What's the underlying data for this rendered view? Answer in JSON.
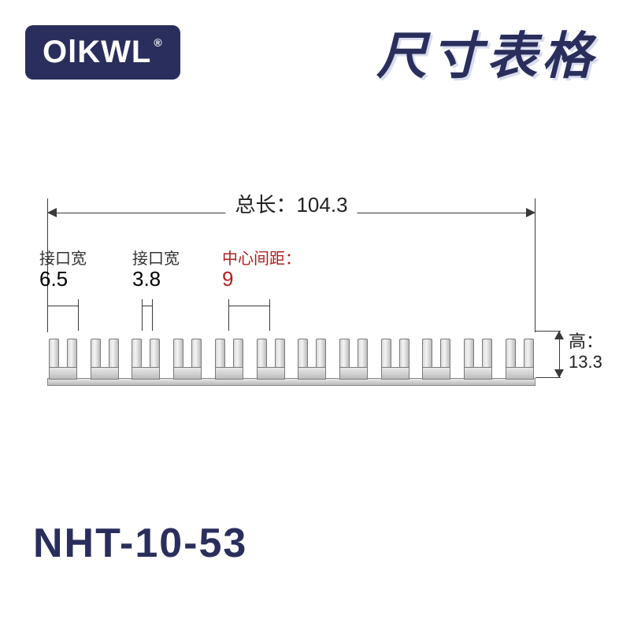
{
  "brand": {
    "logo_text": "OlKWL",
    "registered_mark": "®"
  },
  "title": "尺寸表格",
  "part_number": "NHT-10-53",
  "colors": {
    "brand_navy": "#2a2e5c",
    "accent_red": "#b02020",
    "line_gray": "#3a3a3a",
    "metal_light": "#e8e8e8",
    "metal_dark": "#bcbcbc",
    "background": "#ffffff"
  },
  "dimensions": {
    "total_length": {
      "label": "总长：",
      "value": "104.3"
    },
    "interface_width_outer": {
      "label": "接口宽",
      "value": "6.5"
    },
    "interface_width_inner": {
      "label": "接口宽",
      "value": "3.8"
    },
    "center_pitch": {
      "label": "中心间距：",
      "value": "9"
    },
    "height": {
      "label": "高：",
      "value": "13.3"
    }
  },
  "diagram": {
    "type": "dimensioned-product-drawing",
    "fork_count": 12,
    "fontsize_title": 64,
    "fontsize_dim_large": 26,
    "fontsize_dim_label": 20,
    "fontsize_part": 52
  }
}
